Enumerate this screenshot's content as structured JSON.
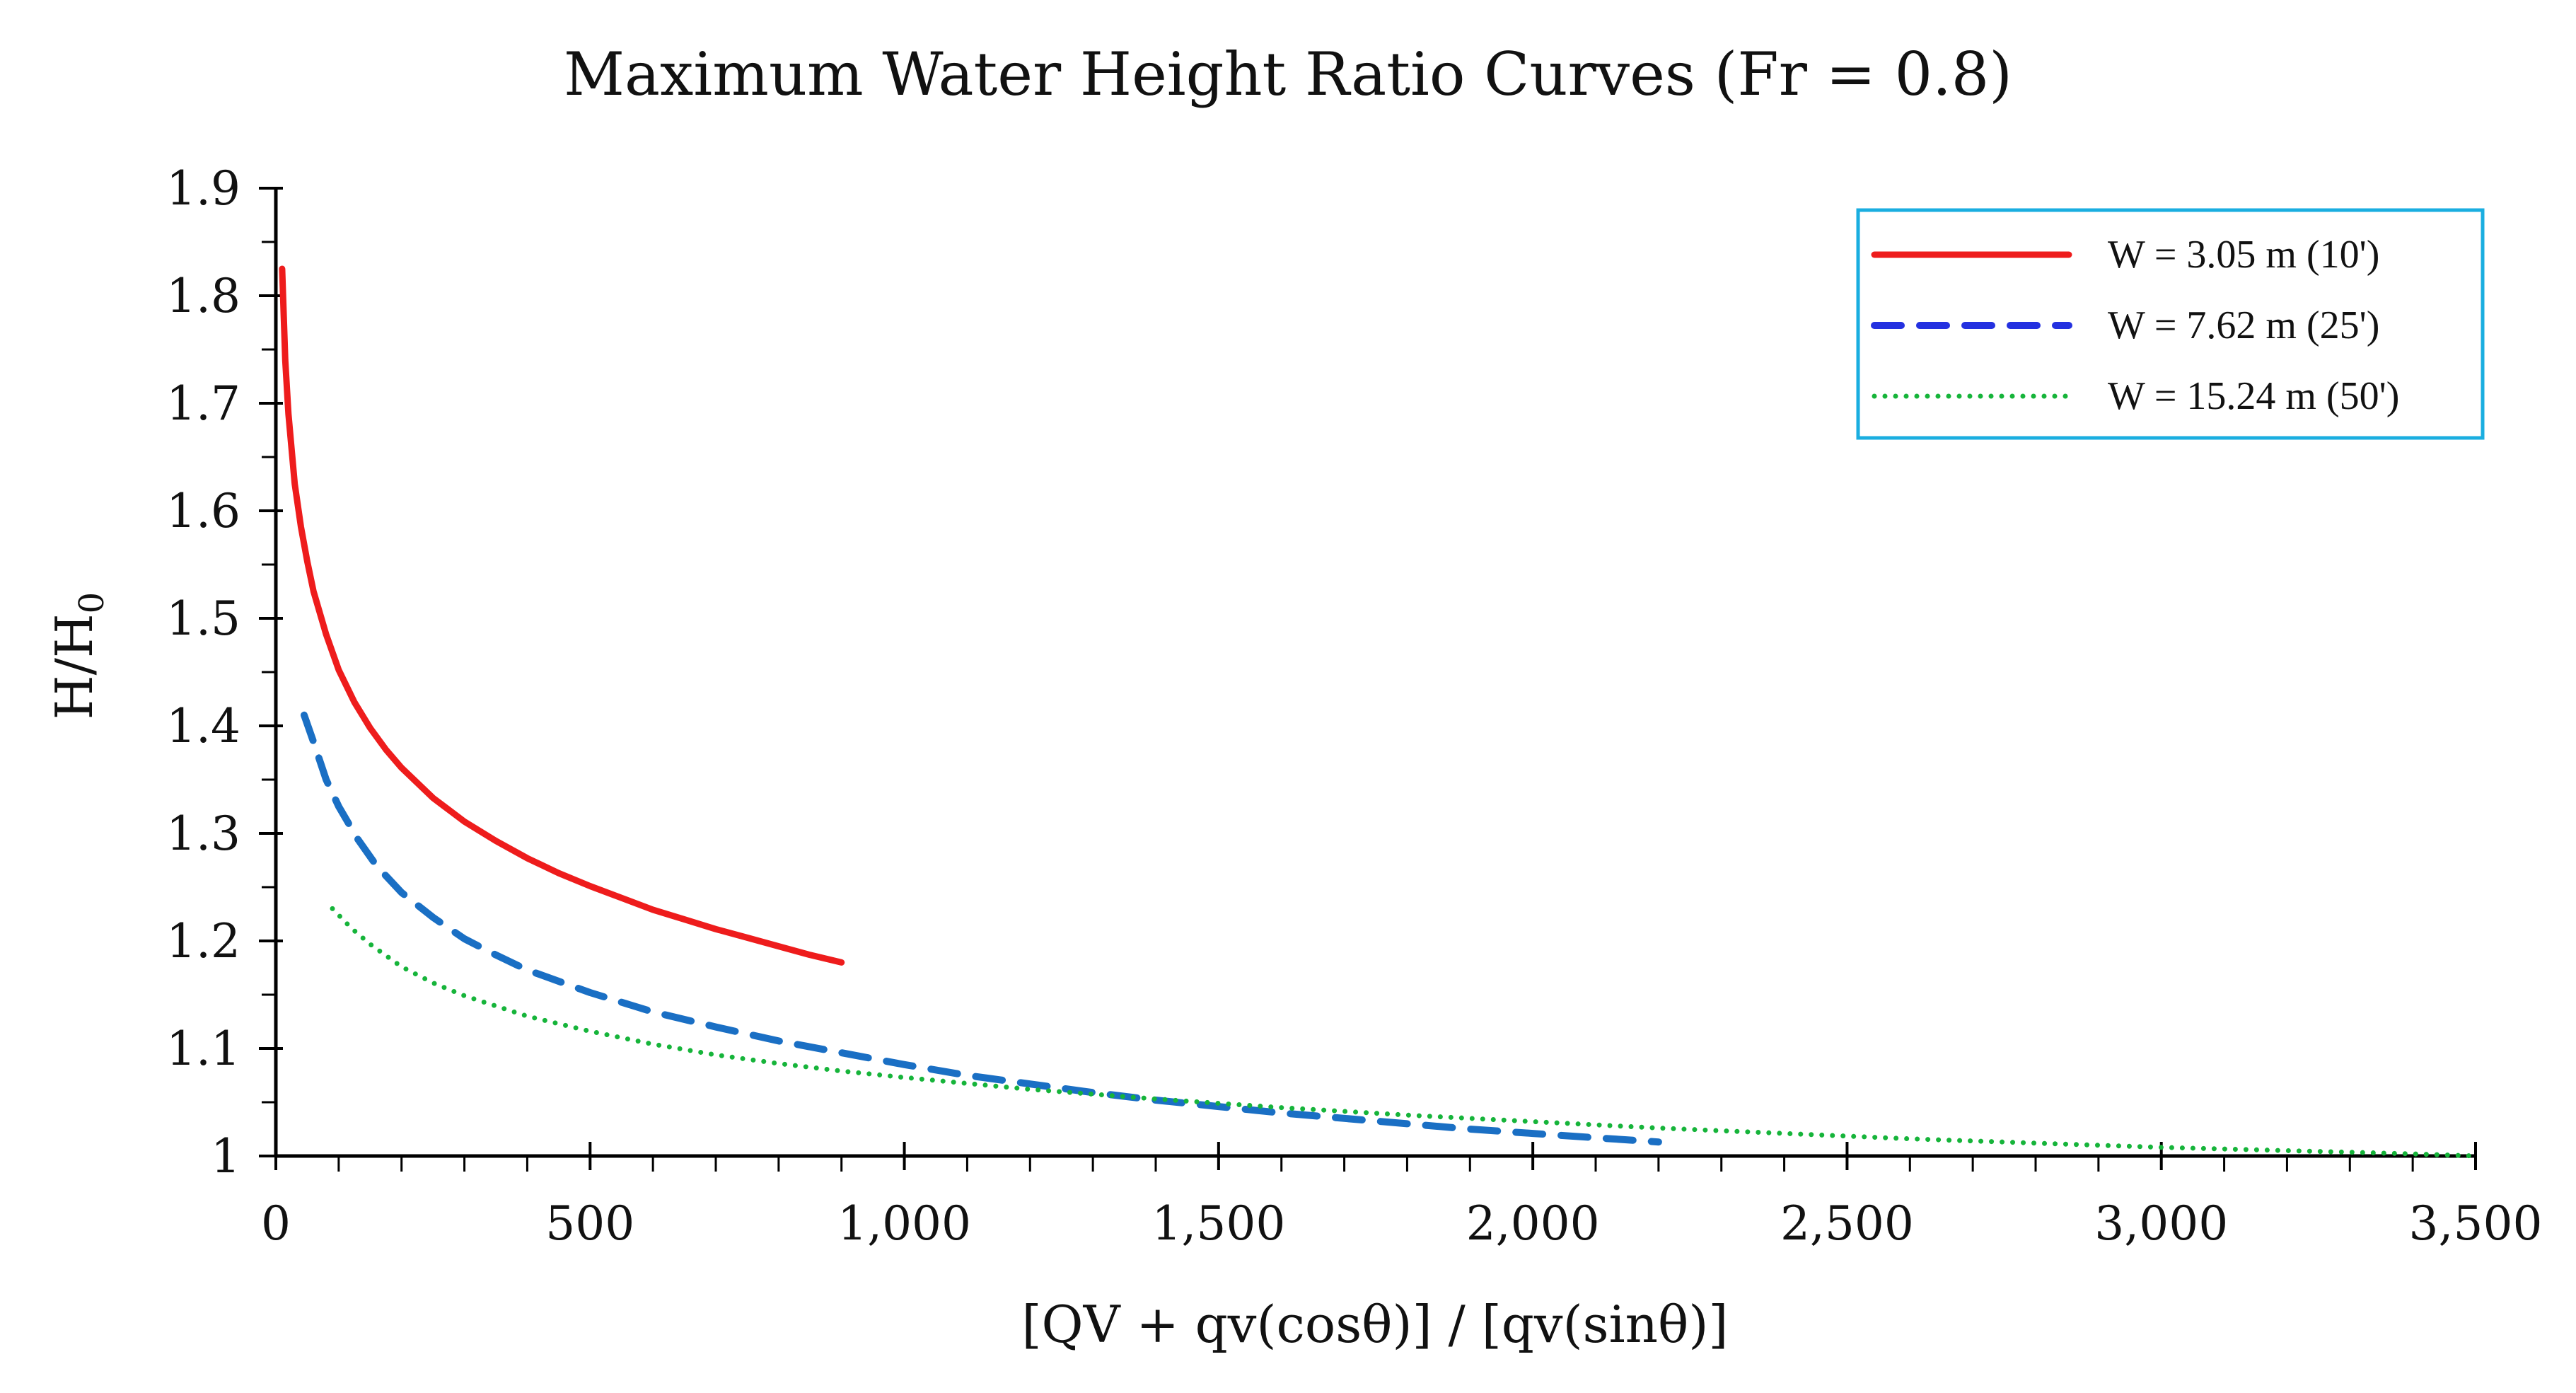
{
  "chart_data": {
    "type": "line",
    "title": "Maximum Water Height Ratio Curves (Fr = 0.8)",
    "xlabel": "[QV + qv(cosθ)] / [qv(sinθ)]",
    "ylabel_main": "H/H",
    "ylabel_sub": "0",
    "xlim": [
      0,
      3500
    ],
    "ylim": [
      1,
      1.9
    ],
    "x_ticks": [
      0,
      500,
      1000,
      1500,
      2000,
      2500,
      3000,
      3500
    ],
    "x_tick_labels": [
      "0",
      "500",
      "1,000",
      "1,500",
      "2,000",
      "2,500",
      "3,000",
      "3,500"
    ],
    "y_ticks": [
      1,
      1.1,
      1.2,
      1.3,
      1.4,
      1.5,
      1.6,
      1.7,
      1.8,
      1.9
    ],
    "y_tick_labels": [
      "1",
      "1.1",
      "1.2",
      "1.3",
      "1.4",
      "1.5",
      "1.6",
      "1.7",
      "1.8",
      "1.9"
    ],
    "grid": false,
    "legend_position": "top-right",
    "series": [
      {
        "name": "W = 3.05 m (10')",
        "style": "solid",
        "color": "#ee1c1c",
        "legend_color": "#ee1c1c",
        "x": [
          10,
          15,
          20,
          30,
          40,
          50,
          60,
          80,
          100,
          125,
          150,
          175,
          200,
          250,
          300,
          350,
          400,
          450,
          500,
          550,
          600,
          650,
          700,
          750,
          800,
          850,
          900
        ],
        "y": [
          1.825,
          1.74,
          1.69,
          1.625,
          1.585,
          1.553,
          1.525,
          1.485,
          1.452,
          1.422,
          1.398,
          1.378,
          1.361,
          1.333,
          1.311,
          1.293,
          1.277,
          1.263,
          1.251,
          1.24,
          1.229,
          1.22,
          1.211,
          1.203,
          1.195,
          1.187,
          1.18
        ]
      },
      {
        "name": "W = 7.62 m (25')",
        "style": "dashed",
        "color": "#1a6fc4",
        "legend_color": "#2431e0",
        "x": [
          45,
          60,
          80,
          100,
          130,
          160,
          200,
          250,
          300,
          350,
          400,
          500,
          600,
          700,
          800,
          900,
          1000,
          1100,
          1200,
          1300,
          1400,
          1500,
          1600,
          1700,
          1800,
          1900,
          2000,
          2100,
          2200
        ],
        "y": [
          1.41,
          1.385,
          1.35,
          1.325,
          1.295,
          1.27,
          1.245,
          1.222,
          1.202,
          1.187,
          1.173,
          1.152,
          1.134,
          1.12,
          1.107,
          1.096,
          1.085,
          1.075,
          1.067,
          1.059,
          1.052,
          1.046,
          1.04,
          1.035,
          1.03,
          1.025,
          1.021,
          1.017,
          1.013
        ]
      },
      {
        "name": "W = 15.24 m (50')",
        "style": "dotted",
        "color": "#16b43a",
        "legend_color": "#16b43a",
        "x": [
          90,
          120,
          150,
          200,
          250,
          300,
          400,
          500,
          600,
          700,
          800,
          900,
          1000,
          1200,
          1400,
          1600,
          1800,
          2000,
          2200,
          2400,
          2600,
          2800,
          3000,
          3200,
          3400,
          3500
        ],
        "y": [
          1.23,
          1.212,
          1.197,
          1.176,
          1.161,
          1.149,
          1.13,
          1.116,
          1.104,
          1.094,
          1.086,
          1.079,
          1.073,
          1.062,
          1.053,
          1.045,
          1.038,
          1.032,
          1.026,
          1.021,
          1.016,
          1.012,
          1.008,
          1.005,
          1.002,
          1.0
        ]
      }
    ]
  }
}
